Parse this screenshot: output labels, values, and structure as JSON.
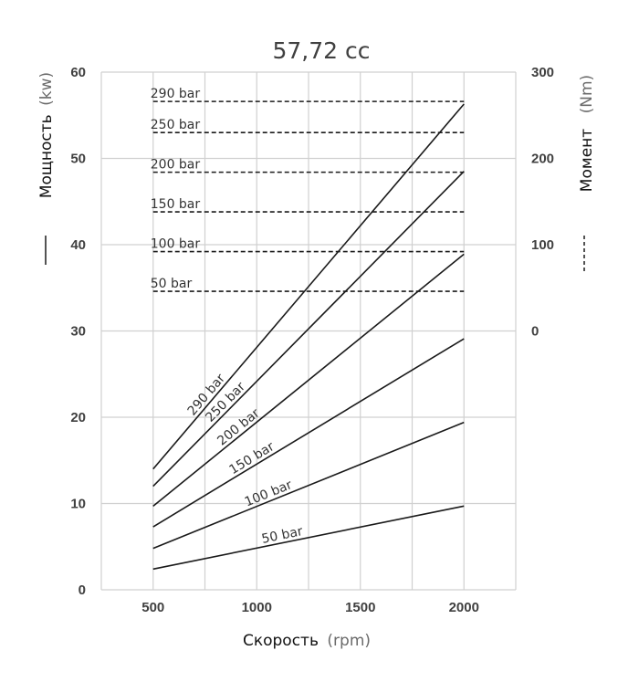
{
  "chart_data": {
    "type": "line",
    "title": "57,72 cc",
    "xlabel": "Скорость",
    "xlabel_unit": "(rpm)",
    "ylabel": "Мощность",
    "ylabel_unit": "(kw)",
    "y2label": "Момент",
    "y2label_unit": "(Nm)",
    "xlim": [
      250,
      2250
    ],
    "ylim": [
      0,
      60
    ],
    "y2lim": [
      -300,
      300
    ],
    "x_ticks": [
      "500",
      "1000",
      "1500",
      "2000"
    ],
    "y_ticks": [
      "0",
      "10",
      "20",
      "30",
      "40",
      "50",
      "60"
    ],
    "y2_ticks": [
      "0",
      "100",
      "200",
      "300"
    ],
    "grid": true,
    "power_series": [
      {
        "name": "290 bar",
        "x": [
          500,
          2000
        ],
        "y": [
          14.0,
          56.3
        ]
      },
      {
        "name": "250 bar",
        "x": [
          500,
          2000
        ],
        "y": [
          12.0,
          48.5
        ]
      },
      {
        "name": "200 bar",
        "x": [
          500,
          2000
        ],
        "y": [
          9.7,
          38.9
        ]
      },
      {
        "name": "150 bar",
        "x": [
          500,
          2000
        ],
        "y": [
          7.3,
          29.1
        ]
      },
      {
        "name": "100 bar",
        "x": [
          500,
          2000
        ],
        "y": [
          4.8,
          19.4
        ]
      },
      {
        "name": "50 bar",
        "x": [
          500,
          2000
        ],
        "y": [
          2.4,
          9.7
        ]
      }
    ],
    "torque_series": [
      {
        "name": "290 bar",
        "x": [
          500,
          2000
        ],
        "y": [
          266,
          266
        ]
      },
      {
        "name": "250 bar",
        "x": [
          500,
          2000
        ],
        "y": [
          230,
          230
        ]
      },
      {
        "name": "200 bar",
        "x": [
          500,
          2000
        ],
        "y": [
          184,
          184
        ]
      },
      {
        "name": "150 bar",
        "x": [
          500,
          2000
        ],
        "y": [
          138,
          138
        ]
      },
      {
        "name": "100 bar",
        "x": [
          500,
          2000
        ],
        "y": [
          92,
          92
        ]
      },
      {
        "name": "50 bar",
        "x": [
          500,
          2000
        ],
        "y": [
          46,
          46
        ]
      }
    ],
    "colors": {
      "line": "#1a1a1a",
      "grid": "#d0d0d0",
      "text": "#404040"
    }
  }
}
